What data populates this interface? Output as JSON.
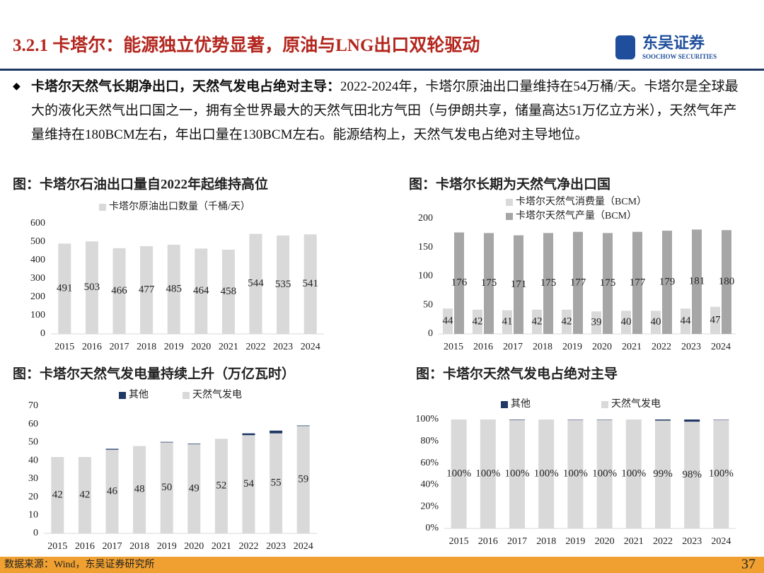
{
  "header": {
    "title": "3.2.1 卡塔尔：能源独立优势显著，原油与LNG出口双轮驱动",
    "logo_cn": "东吴证券",
    "logo_en": "SOOCHOW SECURITIES"
  },
  "bullet": {
    "lead": "卡塔尔天然气长期净出口，天然气发电占绝对主导：",
    "text": "2022-2024年，卡塔尔原油出口量维持在54万桶/天。卡塔尔是全球最大的液化天然气出口国之一，拥有全世界最大的天然气田北方气田（与伊朗共享，储量高达51万亿立方米），天然气年产量维持在180BCM左右，年出口量在130BCM左右。能源结构上，天然气发电占绝对主导地位。"
  },
  "chart_data": [
    {
      "type": "bar",
      "title": "图：卡塔尔石油出口量自2022年起维持高位",
      "categories": [
        "2015",
        "2016",
        "2017",
        "2018",
        "2019",
        "2020",
        "2021",
        "2022",
        "2023",
        "2024"
      ],
      "series": [
        {
          "name": "卡塔尔原油出口数量（千桶/天）",
          "color": "#d9d9d9",
          "data_labels": true,
          "values": [
            491,
            503,
            466,
            477,
            485,
            464,
            458,
            544,
            535,
            541
          ]
        }
      ],
      "ylim": [
        0,
        600
      ],
      "yticks": [
        0,
        100,
        200,
        300,
        400,
        500,
        600
      ]
    },
    {
      "type": "bar",
      "title": "图：卡塔尔长期为天然气净出口国",
      "categories": [
        "2015",
        "2016",
        "2017",
        "2018",
        "2019",
        "2020",
        "2021",
        "2022",
        "2023",
        "2024"
      ],
      "series": [
        {
          "name": "卡塔尔天然气消费量（BCM）",
          "color": "#d9d9d9",
          "data_labels": true,
          "values": [
            44,
            42,
            41,
            42,
            42,
            39,
            40,
            40,
            44,
            47
          ]
        },
        {
          "name": "卡塔尔天然气产量（BCM）",
          "color": "#a6a6a6",
          "data_labels": true,
          "values": [
            176,
            175,
            171,
            175,
            177,
            175,
            177,
            179,
            181,
            180
          ]
        }
      ],
      "ylim": [
        0,
        200
      ],
      "yticks": [
        0,
        50,
        100,
        150,
        200
      ]
    },
    {
      "type": "stacked_bar",
      "title": "图：卡塔尔天然气发电量持续上升（万亿瓦时）",
      "categories": [
        "2015",
        "2016",
        "2017",
        "2018",
        "2019",
        "2020",
        "2021",
        "2022",
        "2023",
        "2024"
      ],
      "series": [
        {
          "name": "其他",
          "color": "#1f3864",
          "data_labels": false,
          "values": [
            0,
            0,
            0.5,
            0,
            0.3,
            0.3,
            0,
            1,
            1.5,
            0.3
          ]
        },
        {
          "name": "天然气发电",
          "color": "#d9d9d9",
          "data_labels": true,
          "values": [
            42,
            42,
            46,
            48,
            50,
            49,
            52,
            54,
            55,
            59
          ]
        }
      ],
      "ylim": [
        0,
        70
      ],
      "yticks": [
        0,
        10,
        20,
        30,
        40,
        50,
        60,
        70
      ]
    },
    {
      "type": "stacked_bar",
      "title": "图：卡塔尔天然气发电占绝对主导",
      "categories": [
        "2015",
        "2016",
        "2017",
        "2018",
        "2019",
        "2020",
        "2021",
        "2022",
        "2023",
        "2024"
      ],
      "series": [
        {
          "name": "其他",
          "color": "#1f3864",
          "data_labels": false,
          "values": [
            0,
            0,
            0.4,
            0,
            0.3,
            0.3,
            0,
            1,
            2,
            0.3
          ]
        },
        {
          "name": "天然气发电",
          "color": "#d9d9d9",
          "data_labels": true,
          "values": [
            100,
            100,
            99.6,
            100,
            99.7,
            99.7,
            100,
            99,
            98,
            99.7
          ],
          "value_labels": [
            "100%",
            "100%",
            "100%",
            "100%",
            "100%",
            "100%",
            "100%",
            "99%",
            "98%",
            "100%"
          ]
        }
      ],
      "ylim": [
        0,
        100
      ],
      "yticks": [
        {
          "value": 0,
          "label": "0%"
        },
        {
          "value": 20,
          "label": "20%"
        },
        {
          "value": 40,
          "label": "40%"
        },
        {
          "value": 60,
          "label": "60%"
        },
        {
          "value": 80,
          "label": "80%"
        },
        {
          "value": 100,
          "label": "100%"
        }
      ]
    }
  ],
  "footer": {
    "source": "数据来源：Wind，东吴证券研究所",
    "page": "37"
  }
}
